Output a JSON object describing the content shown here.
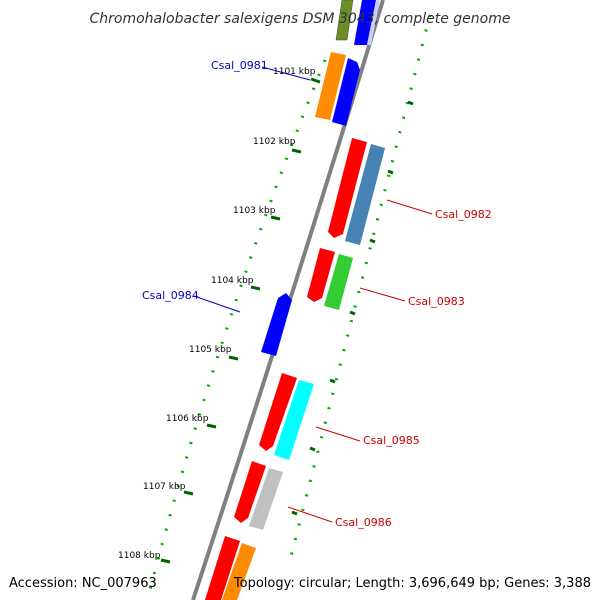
{
  "title": "Chromohalobacter salexigens DSM 3043, complete genome",
  "footer": {
    "accession": "Accession: NC_007963",
    "summary": "Topology: circular; Length: 3,696,649 bp; Genes: 3,388"
  },
  "ticks": [
    "1101 kbp",
    "1102 kbp",
    "1103 kbp",
    "1104 kbp",
    "1105 kbp",
    "1106 kbp",
    "1107 kbp",
    "1108 kbp"
  ],
  "gene_labels": [
    {
      "text": "Csal_0981",
      "color": "#0000cc"
    },
    {
      "text": "Csal_0982",
      "color": "#cc0000"
    },
    {
      "text": "Csal_0983",
      "color": "#cc0000"
    },
    {
      "text": "Csal_0984",
      "color": "#0000cc"
    },
    {
      "text": "Csal_0985",
      "color": "#cc0000"
    },
    {
      "text": "Csal_0986",
      "color": "#cc0000"
    }
  ],
  "colors": {
    "backbone": "#808080",
    "tick": "#006600",
    "forward_gene": "#ff0000",
    "reverse_gene": "#0000ff",
    "cog_orange": "#ff8c00",
    "cog_steelblue": "#4682b4",
    "cog_green": "#33cc33",
    "cog_cyan": "#00ffff",
    "cog_gray": "#c0c0c0",
    "cog_olive": "#6b8e23"
  }
}
